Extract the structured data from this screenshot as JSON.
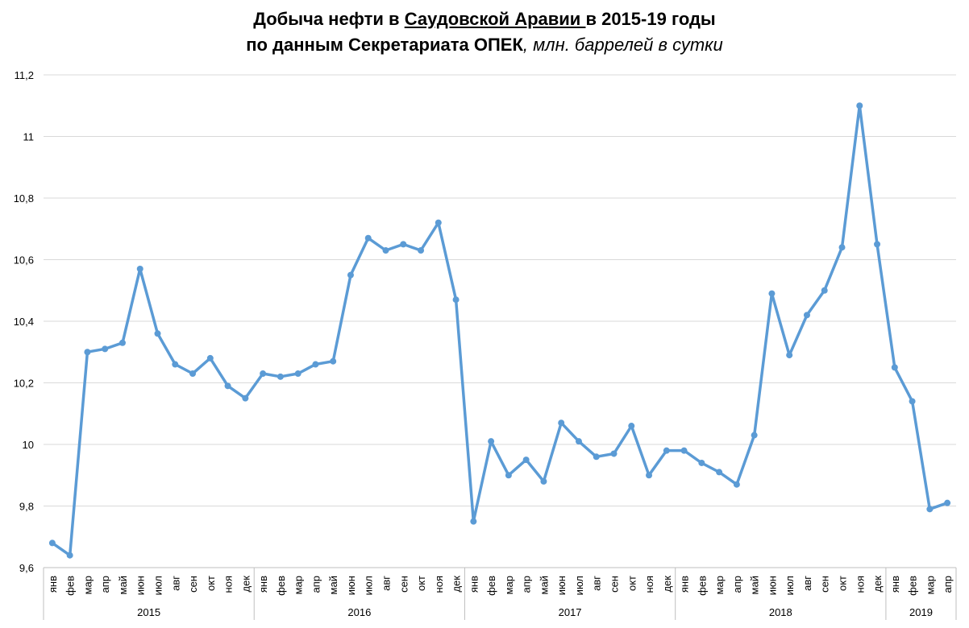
{
  "title": {
    "line1_a": "Добыча нефти в ",
    "line1_u": "Саудовской Аравии ",
    "line1_b": "в 2015-19 годы",
    "line2_a": "по данным Секретариата ОПЕК",
    "line2_i": ", млн. баррелей в сутки"
  },
  "colors": {
    "line": "#5B9BD5",
    "grid": "#D9D9D9",
    "axis": "#BFBFBF"
  },
  "chart_data": {
    "type": "line",
    "title": "Добыча нефти в Саудовской Аравии в 2015-19 годы по данным Секретариата ОПЕК, млн. баррелей в сутки",
    "ylim": [
      9.6,
      11.2
    ],
    "yticks": [
      "9,6",
      "9,8",
      "10",
      "10,2",
      "10,4",
      "10,6",
      "10,8",
      "11",
      "11,2"
    ],
    "ytick_values": [
      9.6,
      9.8,
      10.0,
      10.2,
      10.4,
      10.6,
      10.8,
      11.0,
      11.2
    ],
    "grid": true,
    "groups": [
      {
        "year": "2015",
        "months": [
          "янв",
          "фев",
          "мар",
          "апр",
          "май",
          "июн",
          "июл",
          "авг",
          "сен",
          "окт",
          "ноя",
          "дек"
        ]
      },
      {
        "year": "2016",
        "months": [
          "янв",
          "фев",
          "мар",
          "апр",
          "май",
          "июн",
          "июл",
          "авг",
          "сен",
          "окт",
          "ноя",
          "дек"
        ]
      },
      {
        "year": "2017",
        "months": [
          "янв",
          "фев",
          "мар",
          "апр",
          "май",
          "июн",
          "июл",
          "авг",
          "сен",
          "окт",
          "ноя",
          "дек"
        ]
      },
      {
        "year": "2018",
        "months": [
          "янв",
          "фев",
          "мар",
          "апр",
          "май",
          "июн",
          "июл",
          "авг",
          "сен",
          "окт",
          "ноя",
          "дек"
        ]
      },
      {
        "year": "2019",
        "months": [
          "янв",
          "фев",
          "мар",
          "апр"
        ]
      }
    ],
    "series": [
      {
        "name": "Добыча нефти",
        "values": [
          9.68,
          9.64,
          10.3,
          10.31,
          10.33,
          10.57,
          10.36,
          10.26,
          10.23,
          10.28,
          10.19,
          10.15,
          10.23,
          10.22,
          10.23,
          10.26,
          10.27,
          10.55,
          10.67,
          10.63,
          10.65,
          10.63,
          10.72,
          10.47,
          9.75,
          10.01,
          9.9,
          9.95,
          9.88,
          10.07,
          10.01,
          9.96,
          9.97,
          10.06,
          9.9,
          9.98,
          9.98,
          9.94,
          9.91,
          9.87,
          10.03,
          10.49,
          10.29,
          10.42,
          10.5,
          10.64,
          11.1,
          10.65,
          10.25,
          10.14,
          9.79,
          9.81
        ]
      }
    ]
  }
}
